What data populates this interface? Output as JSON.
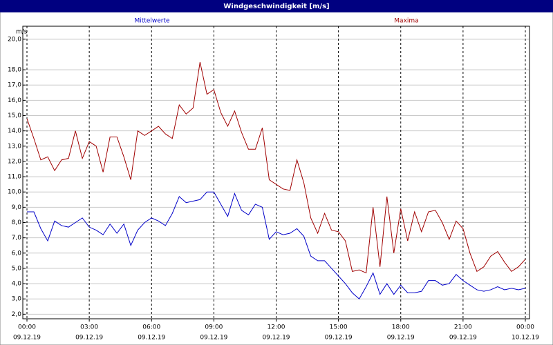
{
  "chart_data": {
    "type": "line",
    "title": "Windgeschwindigkeit [m/s]",
    "y_label": "m/s",
    "x": [
      0,
      20,
      40,
      60,
      80,
      100,
      120,
      140,
      160,
      180,
      200,
      220,
      240,
      260,
      280,
      300,
      320,
      340,
      360,
      380,
      400,
      420,
      440,
      460,
      480,
      500,
      520,
      540,
      560,
      580,
      600,
      620,
      640,
      660,
      680,
      700,
      720,
      740,
      760,
      780,
      800,
      820,
      840,
      860,
      880,
      900,
      920,
      940,
      960,
      980,
      1000,
      1020,
      1040,
      1060,
      1080,
      1100,
      1120,
      1140,
      1160,
      1180,
      1200,
      1220,
      1240,
      1260,
      1280,
      1300,
      1320,
      1340,
      1360,
      1380,
      1400,
      1420,
      1440
    ],
    "series": [
      {
        "name": "Mittelwerte",
        "color": "#0000c8",
        "values": [
          8.7,
          8.7,
          7.6,
          6.8,
          8.1,
          7.8,
          7.7,
          8.0,
          8.3,
          7.7,
          7.5,
          7.2,
          7.9,
          7.3,
          7.9,
          6.5,
          7.5,
          8.0,
          8.3,
          8.1,
          7.8,
          8.6,
          9.7,
          9.3,
          9.4,
          9.5,
          10.0,
          10.0,
          9.2,
          8.4,
          9.9,
          8.8,
          8.5,
          9.2,
          9.0,
          6.9,
          7.4,
          7.2,
          7.3,
          7.6,
          7.1,
          5.8,
          5.5,
          5.5,
          5.0,
          4.5,
          4.0,
          3.4,
          3.0,
          3.8,
          4.7,
          3.3,
          4.0,
          3.3,
          3.9,
          3.4,
          3.4,
          3.5,
          4.2,
          4.2,
          3.9,
          4.0,
          4.6,
          4.2,
          3.9,
          3.6,
          3.5,
          3.6,
          3.8,
          3.6,
          3.7,
          3.6,
          3.7
        ]
      },
      {
        "name": "Maxima",
        "color": "#a00000",
        "values": [
          14.8,
          13.5,
          12.1,
          12.3,
          11.4,
          12.1,
          12.2,
          14.0,
          12.2,
          13.3,
          13.0,
          11.3,
          13.6,
          13.6,
          12.3,
          10.8,
          14.0,
          13.7,
          14.0,
          14.3,
          13.8,
          13.5,
          15.7,
          15.1,
          15.5,
          18.5,
          16.4,
          16.7,
          15.2,
          14.3,
          15.3,
          13.9,
          12.8,
          12.8,
          14.2,
          10.8,
          10.5,
          10.2,
          10.1,
          12.1,
          10.6,
          8.3,
          7.3,
          8.6,
          7.5,
          7.4,
          6.8,
          4.8,
          4.9,
          4.7,
          9.0,
          5.1,
          9.7,
          6.0,
          8.9,
          6.8,
          8.7,
          7.4,
          8.7,
          8.8,
          8.0,
          6.9,
          8.1,
          7.6,
          6.0,
          4.8,
          5.1,
          5.8,
          6.1,
          5.4,
          4.8,
          5.1,
          5.6
        ]
      }
    ],
    "xlim": [
      0,
      1440
    ],
    "xticks": [
      {
        "value": 0,
        "label": "00:00",
        "date": "09.12.19"
      },
      {
        "value": 180,
        "label": "03:00",
        "date": "09.12.19"
      },
      {
        "value": 360,
        "label": "06:00",
        "date": "09.12.19"
      },
      {
        "value": 540,
        "label": "09:00",
        "date": "09.12.19"
      },
      {
        "value": 720,
        "label": "12:00",
        "date": "09.12.19"
      },
      {
        "value": 900,
        "label": "15:00",
        "date": "09.12.19"
      },
      {
        "value": 1080,
        "label": "18:00",
        "date": "09.12.19"
      },
      {
        "value": 1260,
        "label": "21:00",
        "date": "09.12.19"
      },
      {
        "value": 1440,
        "label": "00:00",
        "date": "10.12.19"
      }
    ],
    "ylim": [
      1.7,
      20.85
    ],
    "yticks": [
      {
        "value": 2,
        "label": "2,0"
      },
      {
        "value": 3,
        "label": "3,0"
      },
      {
        "value": 4,
        "label": "4,0"
      },
      {
        "value": 5,
        "label": "5,0"
      },
      {
        "value": 6,
        "label": "6,0"
      },
      {
        "value": 7,
        "label": "7,0"
      },
      {
        "value": 8,
        "label": "8,0"
      },
      {
        "value": 9,
        "label": "9,0"
      },
      {
        "value": 10,
        "label": "10,0"
      },
      {
        "value": 11,
        "label": "11,0"
      },
      {
        "value": 12,
        "label": "12,0"
      },
      {
        "value": 13,
        "label": "13,0"
      },
      {
        "value": 14,
        "label": "14,0"
      },
      {
        "value": 15,
        "label": "15,0"
      },
      {
        "value": 16,
        "label": "16,0"
      },
      {
        "value": 17,
        "label": "17,0"
      },
      {
        "value": 18,
        "label": "18,0"
      },
      {
        "value": 20,
        "label": "20,0"
      }
    ],
    "grid": true
  }
}
